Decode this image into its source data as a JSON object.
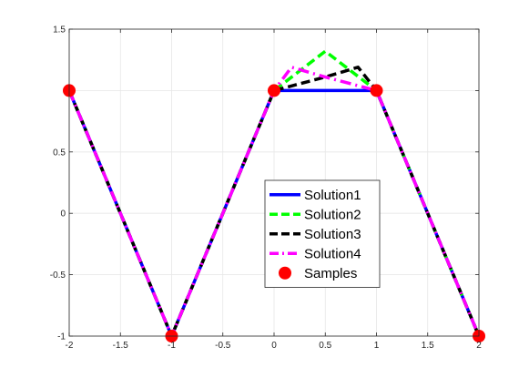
{
  "chart_data": {
    "type": "line",
    "title": "",
    "xlabel": "",
    "ylabel": "",
    "xlim": [
      -2,
      2
    ],
    "ylim": [
      -1,
      1.5
    ],
    "xticks": [
      -2,
      -1.5,
      -1,
      -0.5,
      0,
      0.5,
      1,
      1.5,
      2
    ],
    "xtick_labels": [
      "-2",
      "-1.5",
      "-1",
      "-0.5",
      "0",
      "0.5",
      "1",
      "1.5",
      "2"
    ],
    "yticks": [
      -1,
      -0.5,
      0,
      0.5,
      1,
      1.5
    ],
    "ytick_labels": [
      "-1",
      "-0.5",
      "0",
      "0.5",
      "",
      "1.5"
    ],
    "grid": true,
    "legend_position": "center-right",
    "series": [
      {
        "name": "Solution1",
        "color": "#0000ff",
        "style": "solid",
        "x": [
          -2,
          -1,
          0,
          1,
          2
        ],
        "y": [
          1,
          -1,
          1,
          1,
          -1
        ]
      },
      {
        "name": "Solution2",
        "color": "#00ff00",
        "style": "dashed",
        "x": [
          -2,
          -1,
          0,
          0.5,
          1,
          2
        ],
        "y": [
          1,
          -1,
          1,
          1.32,
          1,
          -1
        ]
      },
      {
        "name": "Solution3",
        "color": "#000000",
        "style": "dashed",
        "x": [
          -2,
          -1,
          0,
          0.5,
          0.82,
          1,
          2
        ],
        "y": [
          1,
          -1,
          1,
          1.11,
          1.19,
          1,
          -1
        ]
      },
      {
        "name": "Solution4",
        "color": "#ff00ff",
        "style": "dashdot",
        "x": [
          -2,
          -1,
          0,
          0.17,
          0.5,
          1,
          2
        ],
        "y": [
          1,
          -1,
          1,
          1.19,
          1.11,
          1,
          -1
        ]
      }
    ],
    "samples": {
      "name": "Samples",
      "color": "#ff0000",
      "x": [
        -2,
        -1,
        0,
        1,
        2
      ],
      "y": [
        1,
        -1,
        1,
        1,
        -1
      ]
    }
  }
}
